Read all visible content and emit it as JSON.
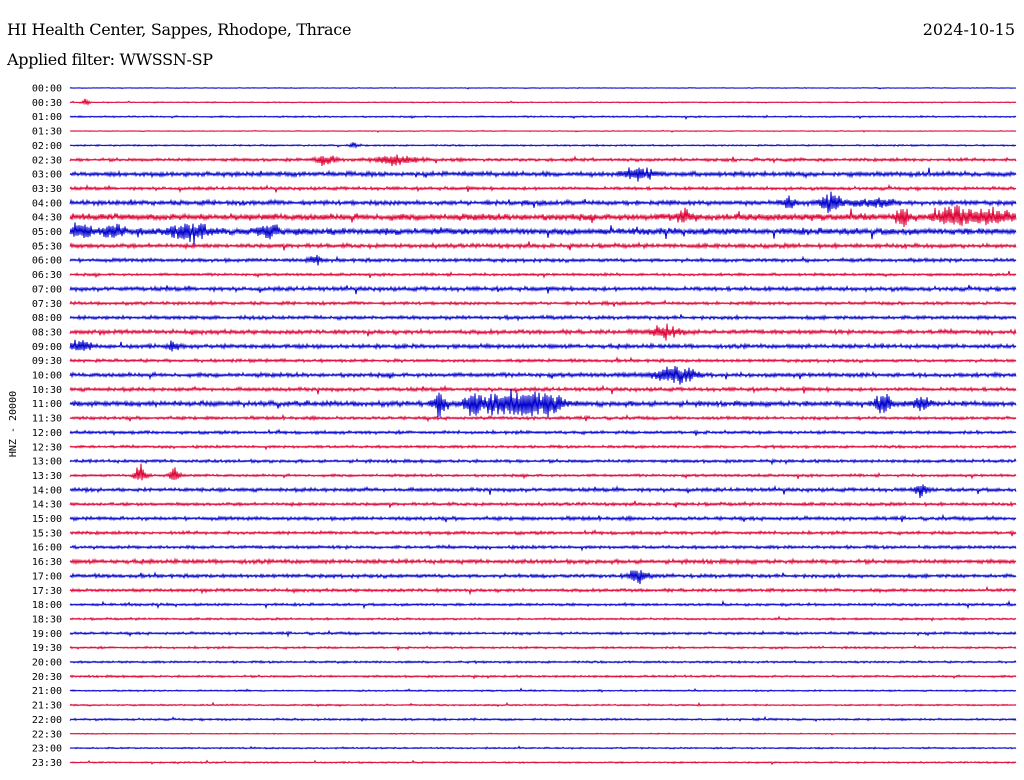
{
  "header": {
    "station": "HI Health Center, Sappes, Rhodope, Thrace",
    "date": "2024-10-15",
    "filter": "Applied filter: WWSSN-SP"
  },
  "chart_data": {
    "type": "line",
    "title": "HI Health Center, Sappes, Rhodope, Thrace",
    "ylabel": "HNZ - 20000",
    "row_labels": [
      "00:00",
      "00:30",
      "01:00",
      "01:30",
      "02:00",
      "02:30",
      "03:00",
      "03:30",
      "04:00",
      "04:30",
      "05:00",
      "05:30",
      "06:00",
      "06:30",
      "07:00",
      "07:30",
      "08:00",
      "08:30",
      "09:00",
      "09:30",
      "10:00",
      "10:30",
      "11:00",
      "11:30",
      "12:00",
      "12:30",
      "13:00",
      "13:30",
      "14:00",
      "14:30",
      "15:00",
      "15:30",
      "16:00",
      "16:30",
      "17:00",
      "17:30",
      "18:00",
      "18:30",
      "19:00",
      "19:30",
      "20:00",
      "20:30",
      "21:00",
      "21:30",
      "22:00",
      "22:30",
      "23:00",
      "23:30"
    ],
    "colors": [
      "#0000cc",
      "#dd0033"
    ],
    "noise_levels": [
      0.3,
      0.4,
      0.6,
      0.3,
      0.6,
      1.2,
      1.8,
      1.2,
      1.8,
      2.6,
      2.6,
      1.6,
      1.4,
      1.0,
      1.6,
      1.2,
      1.4,
      1.6,
      1.6,
      1.2,
      1.6,
      1.4,
      2.0,
      1.2,
      1.2,
      1.0,
      1.2,
      1.0,
      1.4,
      1.2,
      1.4,
      1.2,
      1.2,
      1.6,
      1.4,
      1.2,
      1.0,
      0.8,
      1.0,
      0.8,
      0.8,
      0.8,
      0.6,
      0.6,
      0.8,
      0.4,
      0.6,
      0.6
    ],
    "events": [
      {
        "row": 1,
        "x": 0.017,
        "amp": 3,
        "w": 0.004
      },
      {
        "row": 4,
        "x": 0.3,
        "amp": 3,
        "w": 0.004
      },
      {
        "row": 5,
        "x": 0.27,
        "amp": 4,
        "w": 0.012
      },
      {
        "row": 5,
        "x": 0.345,
        "amp": 5,
        "w": 0.02
      },
      {
        "row": 6,
        "x": 0.6,
        "amp": 6,
        "w": 0.015
      },
      {
        "row": 8,
        "x": 0.76,
        "amp": 6,
        "w": 0.006
      },
      {
        "row": 8,
        "x": 0.805,
        "amp": 10,
        "w": 0.012
      },
      {
        "row": 8,
        "x": 0.85,
        "amp": 4,
        "w": 0.02
      },
      {
        "row": 9,
        "x": 0.65,
        "amp": 6,
        "w": 0.008
      },
      {
        "row": 9,
        "x": 0.88,
        "amp": 10,
        "w": 0.006
      },
      {
        "row": 9,
        "x": 0.935,
        "amp": 8,
        "w": 0.02
      },
      {
        "row": 9,
        "x": 0.975,
        "amp": 6,
        "w": 0.02
      },
      {
        "row": 10,
        "x": 0.01,
        "amp": 9,
        "w": 0.012
      },
      {
        "row": 10,
        "x": 0.045,
        "amp": 8,
        "w": 0.01
      },
      {
        "row": 10,
        "x": 0.125,
        "amp": 9,
        "w": 0.02
      },
      {
        "row": 10,
        "x": 0.21,
        "amp": 6,
        "w": 0.012
      },
      {
        "row": 12,
        "x": 0.26,
        "amp": 5,
        "w": 0.006
      },
      {
        "row": 17,
        "x": 0.63,
        "amp": 6,
        "w": 0.015
      },
      {
        "row": 18,
        "x": 0.01,
        "amp": 5,
        "w": 0.012
      },
      {
        "row": 18,
        "x": 0.11,
        "amp": 5,
        "w": 0.006
      },
      {
        "row": 20,
        "x": 0.64,
        "amp": 8,
        "w": 0.02
      },
      {
        "row": 22,
        "x": 0.39,
        "amp": 12,
        "w": 0.006
      },
      {
        "row": 22,
        "x": 0.425,
        "amp": 8,
        "w": 0.01
      },
      {
        "row": 22,
        "x": 0.46,
        "amp": 10,
        "w": 0.03
      },
      {
        "row": 22,
        "x": 0.5,
        "amp": 11,
        "w": 0.02
      },
      {
        "row": 22,
        "x": 0.86,
        "amp": 10,
        "w": 0.008
      },
      {
        "row": 22,
        "x": 0.9,
        "amp": 8,
        "w": 0.008
      },
      {
        "row": 27,
        "x": 0.075,
        "amp": 10,
        "w": 0.006
      },
      {
        "row": 27,
        "x": 0.11,
        "amp": 8,
        "w": 0.005
      },
      {
        "row": 28,
        "x": 0.9,
        "amp": 6,
        "w": 0.006
      },
      {
        "row": 34,
        "x": 0.6,
        "amp": 10,
        "w": 0.008
      }
    ]
  }
}
